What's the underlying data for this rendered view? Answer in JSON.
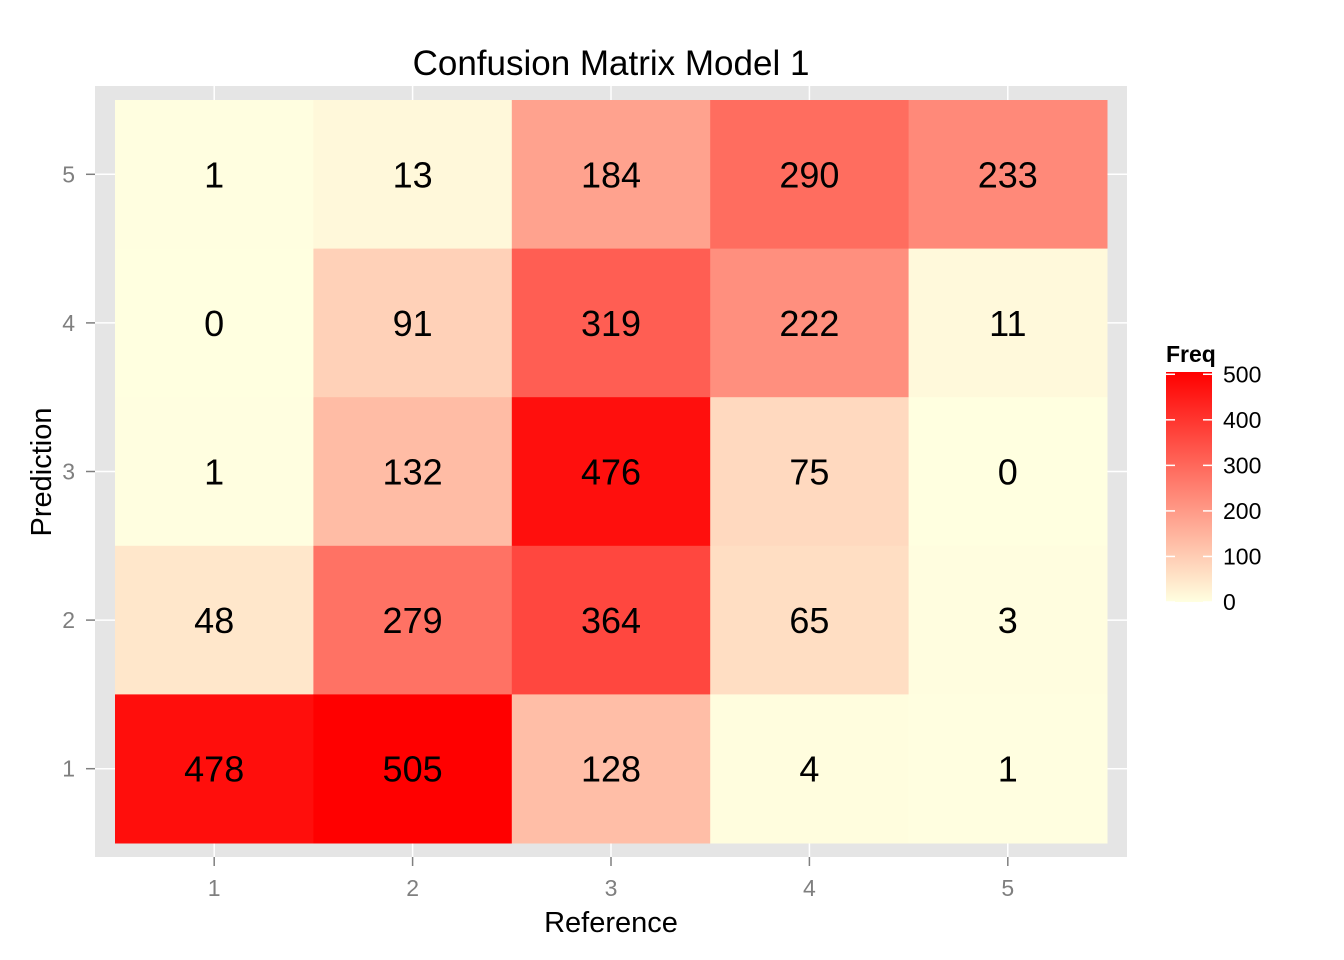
{
  "chart_data": {
    "type": "heatmap",
    "title": "Confusion Matrix Model 1",
    "xlabel": "Reference",
    "ylabel": "Prediction",
    "x_categories": [
      "1",
      "2",
      "3",
      "4",
      "5"
    ],
    "y_categories": [
      "1",
      "2",
      "3",
      "4",
      "5"
    ],
    "cells": [
      {
        "prediction": "5",
        "reference": "1",
        "freq": 1
      },
      {
        "prediction": "5",
        "reference": "2",
        "freq": 13
      },
      {
        "prediction": "5",
        "reference": "3",
        "freq": 184
      },
      {
        "prediction": "5",
        "reference": "4",
        "freq": 290
      },
      {
        "prediction": "5",
        "reference": "5",
        "freq": 233
      },
      {
        "prediction": "4",
        "reference": "1",
        "freq": 0
      },
      {
        "prediction": "4",
        "reference": "2",
        "freq": 91
      },
      {
        "prediction": "4",
        "reference": "3",
        "freq": 319
      },
      {
        "prediction": "4",
        "reference": "4",
        "freq": 222
      },
      {
        "prediction": "4",
        "reference": "5",
        "freq": 11
      },
      {
        "prediction": "3",
        "reference": "1",
        "freq": 1
      },
      {
        "prediction": "3",
        "reference": "2",
        "freq": 132
      },
      {
        "prediction": "3",
        "reference": "3",
        "freq": 476
      },
      {
        "prediction": "3",
        "reference": "4",
        "freq": 75
      },
      {
        "prediction": "3",
        "reference": "5",
        "freq": 0
      },
      {
        "prediction": "2",
        "reference": "1",
        "freq": 48
      },
      {
        "prediction": "2",
        "reference": "2",
        "freq": 279
      },
      {
        "prediction": "2",
        "reference": "3",
        "freq": 364
      },
      {
        "prediction": "2",
        "reference": "4",
        "freq": 65
      },
      {
        "prediction": "2",
        "reference": "5",
        "freq": 3
      },
      {
        "prediction": "1",
        "reference": "1",
        "freq": 478
      },
      {
        "prediction": "1",
        "reference": "2",
        "freq": 505
      },
      {
        "prediction": "1",
        "reference": "3",
        "freq": 128
      },
      {
        "prediction": "1",
        "reference": "4",
        "freq": 4
      },
      {
        "prediction": "1",
        "reference": "5",
        "freq": 1
      }
    ],
    "color_scale": {
      "low": "#FFFFE0",
      "high": "#FF0000",
      "min": 0,
      "max": 505
    },
    "legend": {
      "title": "Freq",
      "placement": "right",
      "ticks": [
        0,
        100,
        200,
        300,
        400,
        500
      ]
    },
    "panel_background": "#E5E5E5",
    "grid": true
  }
}
